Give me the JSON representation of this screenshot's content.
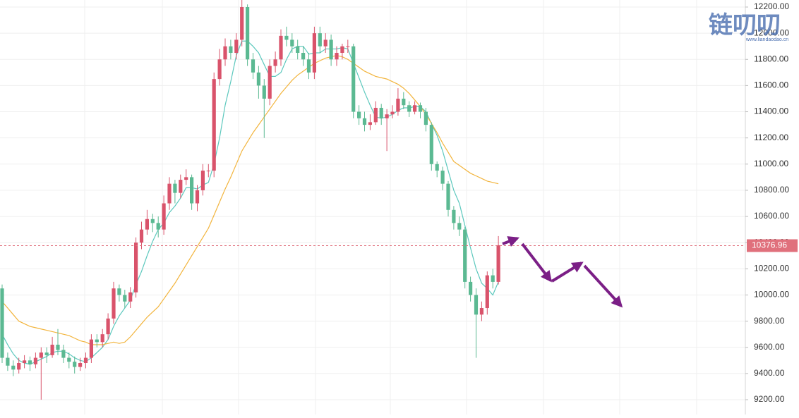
{
  "chart_data": {
    "type": "candlestick",
    "watermark": {
      "title": "链叨叨",
      "url": "www.liandaodao.cn"
    },
    "open": [
      10050,
      9520,
      9460,
      9430,
      9480,
      9500,
      9470,
      9520,
      9560,
      9540,
      9620,
      9580,
      9520,
      9490,
      9450,
      9480,
      9520,
      9660,
      9640,
      9700,
      9820,
      10050,
      10000,
      9950,
      10020,
      10400,
      10500,
      10580,
      10550,
      10500,
      10700,
      10850,
      10780,
      10880,
      10900,
      10700,
      10800,
      10950,
      10950,
      11650,
      11800,
      11900,
      11850,
      11950,
      12200,
      11800,
      11700,
      11600,
      11500,
      11750,
      11800,
      11980,
      11950,
      11900,
      11850,
      11800,
      11700,
      12000,
      11900,
      11950,
      11800,
      11850,
      11900,
      11900,
      11400,
      11350,
      11300,
      11320,
      11430,
      11350,
      11380,
      11400,
      11500,
      11450,
      11400,
      11450,
      11400,
      11300,
      11000,
      10950,
      10850,
      10650,
      10550,
      10500,
      10100,
      10000,
      9850,
      9900,
      10150,
      10100
    ],
    "high": [
      10080,
      9560,
      9500,
      9520,
      9540,
      9530,
      9560,
      9600,
      9600,
      9680,
      9740,
      9620,
      9560,
      9530,
      9520,
      9560,
      9700,
      9700,
      9740,
      9860,
      10100,
      10080,
      10040,
      10060,
      10440,
      10560,
      10650,
      10620,
      10600,
      10760,
      10900,
      10880,
      10920,
      10960,
      10920,
      10840,
      11000,
      11000,
      11700,
      11880,
      11960,
      11950,
      12000,
      12260,
      12220,
      11850,
      11750,
      11650,
      11800,
      11860,
      12030,
      12050,
      12000,
      11950,
      11900,
      11850,
      12050,
      12050,
      12000,
      11990,
      11900,
      11920,
      11950,
      11920,
      11450,
      11400,
      11380,
      11480,
      11460,
      11420,
      11450,
      11580,
      11550,
      11480,
      11480,
      11470,
      11430,
      11320,
      11020,
      10980,
      10870,
      10680,
      10600,
      10520,
      10140,
      10050,
      9950,
      10180,
      10200,
      10450
    ],
    "low": [
      9480,
      9420,
      9380,
      9400,
      9440,
      9420,
      9440,
      9200,
      9480,
      9520,
      9540,
      9480,
      9440,
      9400,
      9420,
      9440,
      9480,
      9600,
      9600,
      9660,
      9780,
      9950,
      9900,
      9900,
      9980,
      10350,
      10460,
      10480,
      10440,
      10460,
      10650,
      10700,
      10740,
      10840,
      10650,
      10640,
      10760,
      10900,
      10900,
      11600,
      11750,
      11800,
      11800,
      11900,
      11750,
      11650,
      11500,
      11200,
      11450,
      11700,
      11750,
      11900,
      11850,
      11800,
      11750,
      11650,
      11650,
      11850,
      11850,
      11750,
      11750,
      11800,
      11850,
      11350,
      11300,
      11250,
      11260,
      11300,
      11300,
      11100,
      11350,
      11370,
      11420,
      11360,
      11380,
      11350,
      11250,
      10950,
      10900,
      10800,
      10600,
      10500,
      10450,
      10050,
      9950,
      9520,
      9800,
      9850,
      10050,
      10080
    ],
    "close": [
      9520,
      9460,
      9430,
      9480,
      9500,
      9470,
      9520,
      9560,
      9540,
      9620,
      9580,
      9520,
      9490,
      9450,
      9480,
      9520,
      9660,
      9640,
      9700,
      9820,
      10050,
      10000,
      9950,
      10020,
      10400,
      10500,
      10580,
      10550,
      10500,
      10700,
      10850,
      10780,
      10880,
      10900,
      10700,
      10800,
      10950,
      10950,
      11650,
      11800,
      11900,
      11850,
      11950,
      12200,
      11800,
      11700,
      11600,
      11500,
      11750,
      11800,
      11980,
      11950,
      11900,
      11850,
      11800,
      11700,
      12000,
      11900,
      11950,
      11800,
      11850,
      11900,
      11900,
      11400,
      11350,
      11300,
      11320,
      11430,
      11350,
      11380,
      11400,
      11500,
      11450,
      11400,
      11450,
      11400,
      11300,
      11000,
      10950,
      10850,
      10650,
      10550,
      10500,
      10100,
      10000,
      9850,
      9900,
      10150,
      10100,
      10380
    ],
    "up_color": "#d9536b",
    "down_color": "#5bb992",
    "lines": [
      {
        "color": "#5cc8bd",
        "values": [
          9700,
          9620,
          9550,
          9500,
          9480,
          9470,
          9490,
          9510,
          9530,
          9560,
          9570,
          9570,
          9550,
          9520,
          9500,
          9490,
          9520,
          9560,
          9600,
          9660,
          9760,
          9840,
          9900,
          9960,
          10080,
          10180,
          10300,
          10410,
          10500,
          10550,
          10630,
          10680,
          10740,
          10820,
          10820,
          10810,
          10840,
          10860,
          11000,
          11200,
          11450,
          11630,
          11830,
          11940,
          11940,
          11900,
          11850,
          11760,
          11670,
          11670,
          11700,
          11800,
          11880,
          11900,
          11900,
          11840,
          11850,
          11850,
          11880,
          11880,
          11880,
          11890,
          11880,
          11770,
          11660,
          11550,
          11450,
          11360,
          11350,
          11360,
          11380,
          11410,
          11430,
          11430,
          11440,
          11440,
          11400,
          11310,
          11220,
          11100,
          10950,
          10800,
          10700,
          10530,
          10360,
          10200,
          10090,
          10050,
          10000,
          10100
        ]
      },
      {
        "color": "#f2b43c",
        "values": [
          9950,
          9900,
          9850,
          9800,
          9780,
          9760,
          9750,
          9740,
          9730,
          9720,
          9710,
          9700,
          9690,
          9670,
          9650,
          9640,
          9620,
          9620,
          9620,
          9630,
          9640,
          9630,
          9640,
          9680,
          9730,
          9780,
          9830,
          9870,
          9910,
          9970,
          10030,
          10090,
          10160,
          10230,
          10300,
          10370,
          10440,
          10510,
          10610,
          10710,
          10810,
          10900,
          11000,
          11100,
          11170,
          11240,
          11300,
          11360,
          11420,
          11480,
          11540,
          11590,
          11640,
          11680,
          11710,
          11740,
          11770,
          11790,
          11810,
          11820,
          11830,
          11820,
          11800,
          11770,
          11740,
          11710,
          11690,
          11670,
          11660,
          11650,
          11630,
          11610,
          11580,
          11540,
          11490,
          11440,
          11380,
          11310,
          11240,
          11160,
          11090,
          11020,
          10990,
          10960,
          10930,
          10910,
          10890,
          10870,
          10860,
          10850
        ]
      }
    ],
    "last_price": 10376.96,
    "last_price_color": "#e0707c",
    "ylim": [
      9200,
      12200
    ],
    "yticks": [
      {
        "value": 9200,
        "label": "9200.00"
      },
      {
        "value": 9400,
        "label": "9400.00"
      },
      {
        "value": 9600,
        "label": "9600.00"
      },
      {
        "value": 9800,
        "label": "9800.00"
      },
      {
        "value": 10000,
        "label": "10000.00"
      },
      {
        "value": 10200,
        "label": "10200.00"
      },
      {
        "value": 10400,
        "label": "10400.00"
      },
      {
        "value": 10600,
        "label": "10600.00"
      },
      {
        "value": 10800,
        "label": "10800.00"
      },
      {
        "value": 11000,
        "label": "11000.00"
      },
      {
        "value": 11200,
        "label": "11200.00"
      },
      {
        "value": 11400,
        "label": "11400.00"
      },
      {
        "value": 11600,
        "label": "11600.00"
      },
      {
        "value": 11800,
        "label": "11800.00"
      },
      {
        "value": 12000,
        "label": "12000.00"
      },
      {
        "value": 12200,
        "label": "12200.00"
      }
    ],
    "grid": true
  }
}
